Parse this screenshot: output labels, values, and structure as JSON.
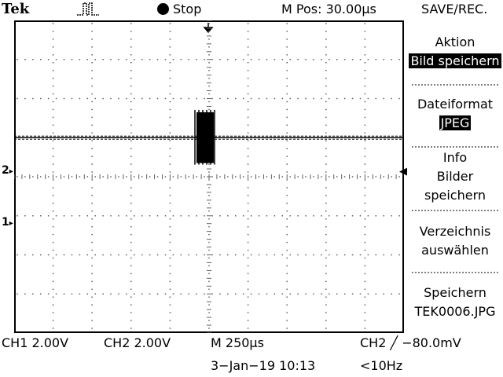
{
  "header": {
    "brand": "Tek",
    "trigger_symbol": "⎍",
    "status": "Stop",
    "position": "M Pos: 30.00µs",
    "menu_title": "SAVE/REC."
  },
  "menu": {
    "action_label": "Aktion",
    "action_value": "Bild speichern",
    "format_label": "Dateiformat",
    "format_value": "JPEG",
    "info_line1": "Info",
    "info_line2": "Bilder",
    "info_line3": "speichern",
    "dir_line1": "Verzeichnis",
    "dir_line2": "auswählen",
    "save_line1": "Speichern",
    "save_line2": "TEK0006.JPG"
  },
  "footer": {
    "ch1": "CH1  2.00V",
    "ch2": "CH2  2.00V",
    "timebase": "M 250µs",
    "trigger": "CH2 ╱ −80.0mV",
    "datetime": "3−Jan−19 10:13",
    "frequency": "<10Hz"
  },
  "markers": {
    "ch2": "2",
    "ch1": "1",
    "trigger_level": "◀"
  },
  "waveform": {
    "ch2_level_div": 0.0,
    "glitch_position_div": 0.0,
    "glitch_amplitude_div": 0.5
  }
}
